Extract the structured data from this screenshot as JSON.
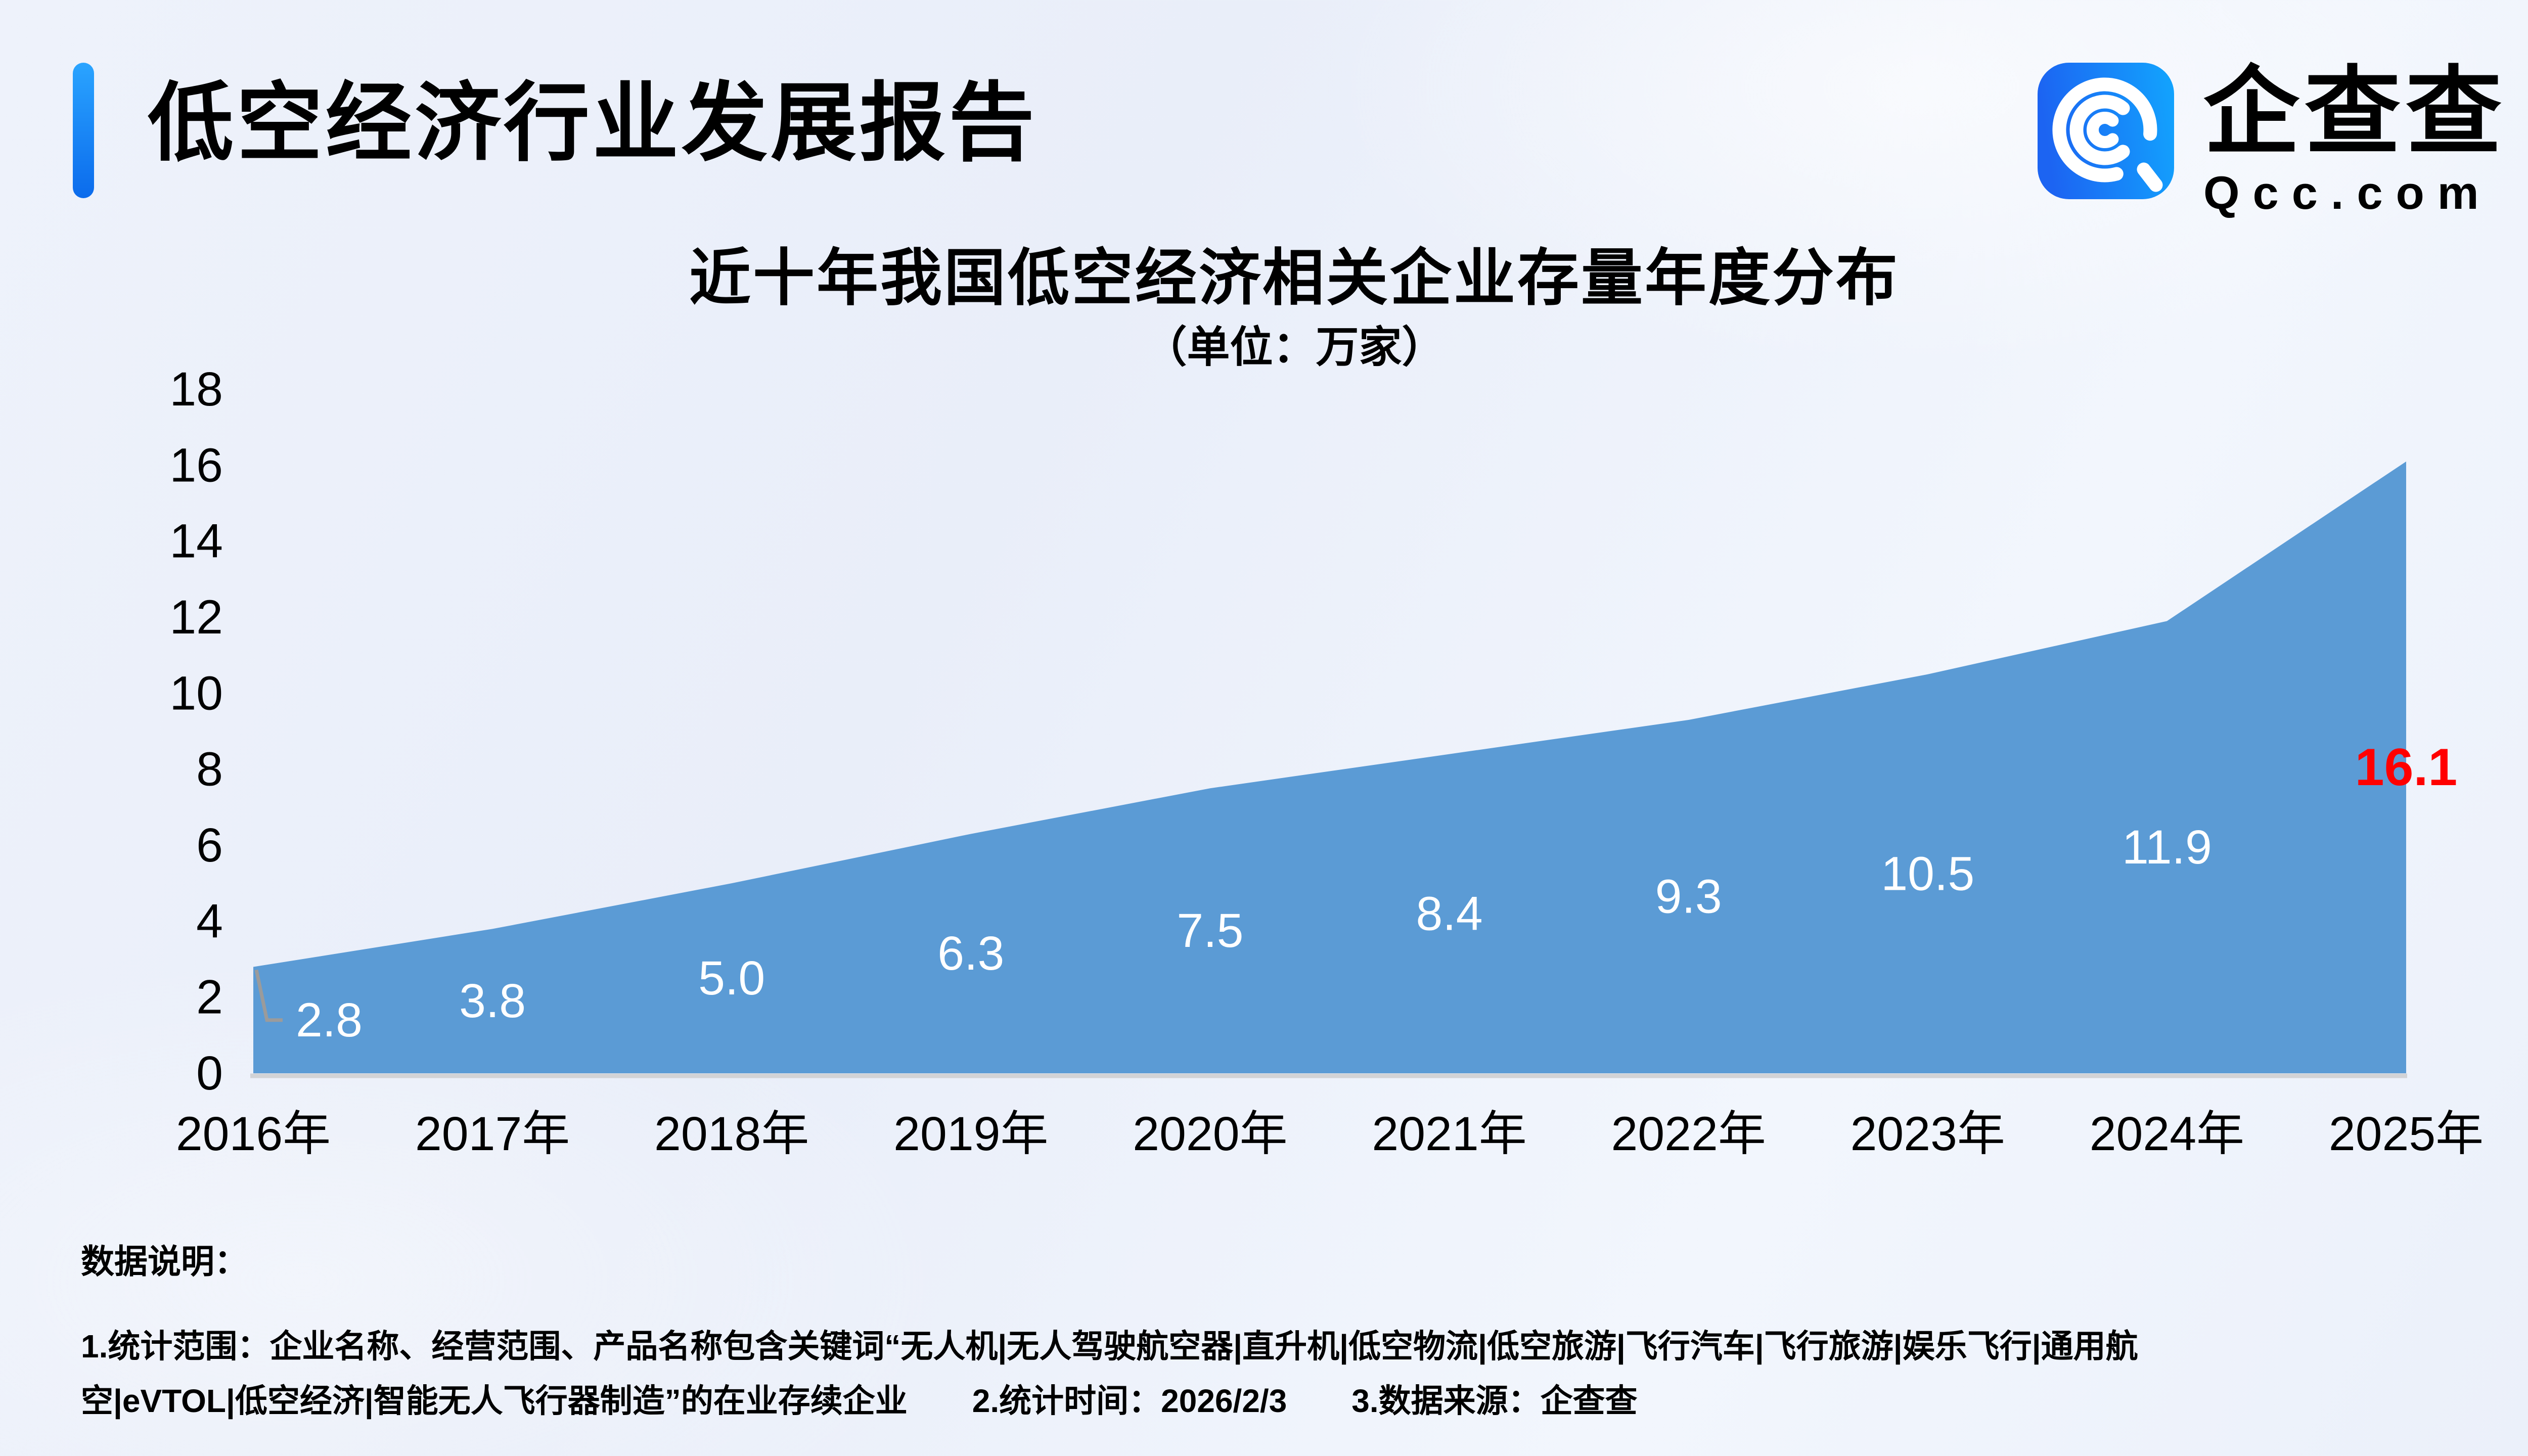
{
  "header": {
    "title": "低空经济行业发展报告",
    "logo": {
      "name": "企查查",
      "domain": "Qcc.com",
      "icon": "qcc-spiral-q-icon",
      "icon_gradient": [
        "#1c64f2",
        "#12a5fe"
      ],
      "accent_bar_gradient": [
        "#2aa4ff",
        "#0b6bec"
      ]
    }
  },
  "chart": {
    "title": "近十年我国低空经济相关企业存量年度分布",
    "subtitle": "（单位：万家）"
  },
  "chart_data": {
    "type": "area",
    "title": "近十年我国低空经济相关企业存量年度分布",
    "unit_label": "（单位：万家）",
    "categories": [
      "2016年",
      "2017年",
      "2018年",
      "2019年",
      "2020年",
      "2021年",
      "2022年",
      "2023年",
      "2024年",
      "2025年"
    ],
    "values": [
      2.8,
      3.8,
      5.0,
      6.3,
      7.5,
      8.4,
      9.3,
      10.5,
      11.9,
      16.1
    ],
    "ylim": [
      0,
      18
    ],
    "ytick_step": 2,
    "grid": false,
    "legend": "none",
    "area_color": "#5b9bd5",
    "axis_line_color": "#d2d3d6",
    "label_color": "#ffffff",
    "highlight_last": true,
    "highlight_last_color": "#ff0000",
    "label_position": "center",
    "leader_line_first_label": true,
    "leader_line_color": "#9b9b9b",
    "first_label_dx": 150
  },
  "footer": {
    "heading": "数据说明：",
    "lines": [
      "1.统计范围：企业名称、经营范围、产品名称包含关键词“无人机|无人驾驶航空器|直升机|低空物流|低空旅游|飞行汽车|飞行旅游|娱乐飞行|通用航",
      "空|eVTOL|低空经济|智能无人飞行器制造”的在业存续企业　　2.统计时间：2026/2/3　　3.数据来源：企查查"
    ]
  }
}
